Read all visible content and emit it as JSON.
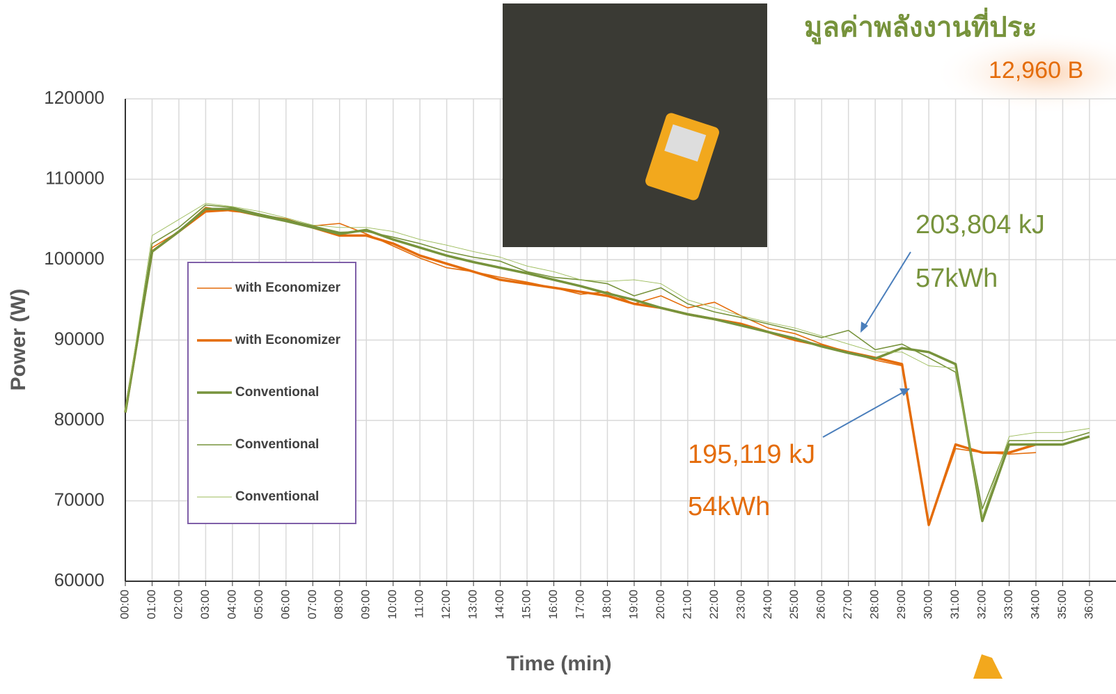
{
  "chart_data": {
    "type": "line",
    "title": "มูลค่าพลังงานที่ประ",
    "subtitle": "12,960 B",
    "x_label": "Time (min)",
    "y_label": "Power (W)",
    "categories": [
      "00:00",
      "01:00",
      "02:00",
      "03:00",
      "04:00",
      "05:00",
      "06:00",
      "07:00",
      "08:00",
      "09:00",
      "10:00",
      "11:00",
      "12:00",
      "13:00",
      "14:00",
      "15:00",
      "16:00",
      "17:00",
      "18:00",
      "19:00",
      "20:00",
      "21:00",
      "22:00",
      "23:00",
      "24:00",
      "25:00",
      "26:00",
      "27:00",
      "28:00",
      "29:00",
      "30:00",
      "31:00",
      "32:00",
      "33:00",
      "34:00",
      "35:00",
      "36:00"
    ],
    "ylim": [
      60000,
      120000
    ],
    "yticks": [
      60000,
      70000,
      80000,
      90000,
      100000,
      110000,
      120000
    ],
    "grid": true,
    "legend": "left",
    "series": [
      {
        "name": "with Economizer",
        "color": "#e46c0a",
        "values": [
          81000,
          101500,
          103500,
          106500,
          106000,
          105700,
          104800,
          104200,
          104500,
          103200,
          101700,
          100200,
          99000,
          98500,
          97800,
          97200,
          96500,
          95700,
          96000,
          94500,
          95500,
          94000,
          94700,
          93000,
          91500,
          90800,
          89500,
          88500,
          87500,
          86800,
          67000,
          76500,
          76000,
          75800,
          76000,
          null,
          null
        ]
      },
      {
        "name": "with Economizer",
        "color": "#e46c0a",
        "values": [
          81000,
          101000,
          103500,
          106000,
          106200,
          105500,
          105000,
          104000,
          103000,
          103000,
          102000,
          100500,
          99500,
          98500,
          97500,
          97000,
          96500,
          96000,
          95500,
          94500,
          94000,
          93200,
          92600,
          92000,
          91000,
          90000,
          89300,
          88500,
          87800,
          87000,
          67000,
          77000,
          76000,
          76000,
          77000,
          null,
          null
        ]
      },
      {
        "name": "Conventional",
        "color": "#77933c",
        "values": [
          81000,
          101000,
          103500,
          106300,
          106300,
          105500,
          104800,
          104000,
          103200,
          103700,
          102500,
          101500,
          100500,
          99700,
          99000,
          98300,
          97500,
          96700,
          95800,
          95000,
          94000,
          93200,
          92600,
          91800,
          91000,
          90200,
          89200,
          88400,
          87700,
          89000,
          88500,
          87000,
          67500,
          77000,
          77000,
          77000,
          78000
        ]
      },
      {
        "name": "Conventional",
        "color": "#77933c",
        "values": [
          81000,
          102000,
          104000,
          106800,
          106500,
          105700,
          105000,
          104200,
          103400,
          103500,
          102800,
          102000,
          101000,
          100300,
          99800,
          98500,
          97800,
          97500,
          97000,
          95500,
          96500,
          94500,
          93500,
          92800,
          92000,
          91200,
          90300,
          91200,
          88800,
          89500,
          87800,
          86000,
          69000,
          77500,
          77500,
          77500,
          78500
        ]
      },
      {
        "name": "Conventional",
        "color": "#9bbb59",
        "values": [
          81000,
          103000,
          105000,
          107000,
          106600,
          106000,
          105200,
          104300,
          104000,
          104000,
          103500,
          102500,
          101800,
          101000,
          100300,
          99200,
          98500,
          97500,
          97300,
          97500,
          97000,
          95000,
          94000,
          93000,
          92200,
          91500,
          90500,
          89500,
          88500,
          88500,
          86800,
          86500,
          68000,
          78000,
          78500,
          78500,
          79000
        ]
      }
    ],
    "annotations": [
      {
        "text": "203,804 kJ",
        "color": "#77933c"
      },
      {
        "text": "57kWh",
        "color": "#77933c"
      },
      {
        "text": "195,119 kJ",
        "color": "#e46c0a"
      },
      {
        "text": "54kWh",
        "color": "#e46c0a"
      }
    ]
  }
}
